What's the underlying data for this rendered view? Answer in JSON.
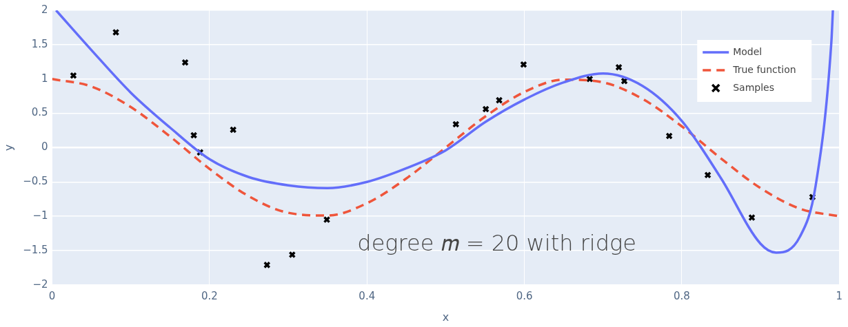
{
  "chart_data": {
    "type": "line",
    "xlabel": "x",
    "ylabel": "y",
    "xlim": [
      0,
      1
    ],
    "xticks": [
      0,
      0.2,
      0.4,
      0.6,
      0.8,
      1
    ],
    "ylim": [
      -2,
      2
    ],
    "yticks": [
      -2,
      -1.5,
      -1,
      -0.5,
      0,
      0.5,
      1,
      1.5,
      2
    ],
    "grid": true,
    "legend": "top right",
    "annotations": [
      "degree 𝑚 = 20 with ridge"
    ],
    "series": [
      {
        "name": "Model",
        "type": "line",
        "color": "#636efa",
        "line_style": "solid",
        "x": [
          0.005,
          0.05,
          0.1,
          0.15,
          0.2,
          0.25,
          0.3,
          0.35,
          0.4,
          0.45,
          0.5,
          0.55,
          0.6,
          0.65,
          0.7,
          0.75,
          0.8,
          0.85,
          0.9,
          0.92,
          0.95,
          0.97,
          0.99,
          0.992
        ],
        "values": [
          2.0,
          1.42,
          0.8,
          0.29,
          -0.17,
          -0.43,
          -0.55,
          -0.59,
          -0.5,
          -0.3,
          -0.04,
          0.37,
          0.7,
          0.95,
          1.08,
          0.9,
          0.39,
          -0.45,
          -1.4,
          -1.53,
          -1.3,
          -0.56,
          1.53,
          2.0
        ]
      },
      {
        "name": "True function",
        "type": "line",
        "color": "#ef553b",
        "line_style": "dashed",
        "x": [
          0,
          0.05,
          0.1,
          0.15,
          0.2,
          0.25,
          0.3,
          0.35,
          0.4,
          0.45,
          0.5,
          0.55,
          0.6,
          0.65,
          0.7,
          0.75,
          0.8,
          0.85,
          0.9,
          0.95,
          1
        ],
        "values": [
          1,
          0.89,
          0.59,
          0.16,
          -0.31,
          -0.71,
          -0.95,
          -0.99,
          -0.81,
          -0.45,
          0,
          0.45,
          0.81,
          0.99,
          0.95,
          0.71,
          0.31,
          -0.16,
          -0.59,
          -0.89,
          -1
        ]
      },
      {
        "name": "Samples",
        "type": "scatter",
        "color": "#000000",
        "marker": "cross",
        "x": [
          0.027,
          0.081,
          0.169,
          0.18,
          0.188,
          0.23,
          0.273,
          0.305,
          0.349,
          0.513,
          0.551,
          0.568,
          0.599,
          0.683,
          0.72,
          0.727,
          0.784,
          0.833,
          0.889,
          0.966
        ],
        "values": [
          1.05,
          1.68,
          1.24,
          0.18,
          -0.07,
          0.26,
          -1.71,
          -1.56,
          -1.05,
          0.34,
          0.56,
          0.69,
          1.21,
          1.0,
          1.17,
          0.97,
          0.17,
          -0.4,
          -1.02,
          -0.72
        ]
      }
    ]
  }
}
